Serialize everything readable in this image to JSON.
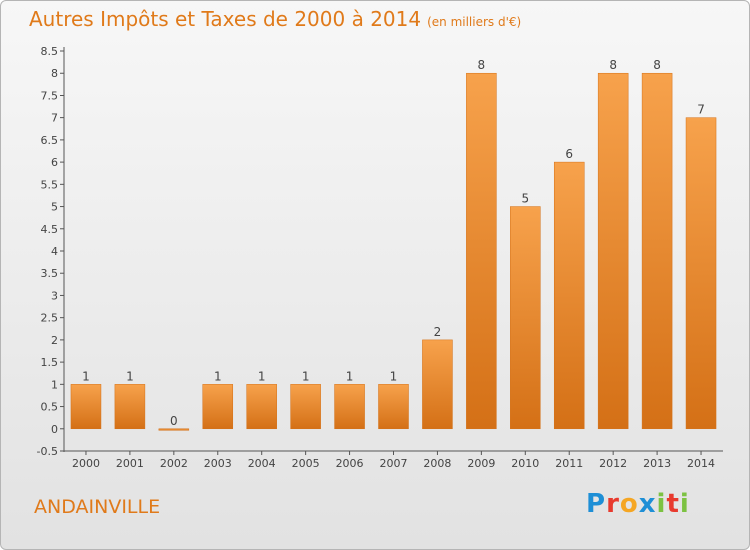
{
  "title": "Autres Impôts et Taxes de 2000 à 2014",
  "unit": "(en milliers d'€)",
  "commune": "ANDAINVILLE",
  "brand": {
    "letters": [
      "P",
      "r",
      "o",
      "x",
      "i",
      "t",
      "i"
    ],
    "colors": [
      "#1e8fd6",
      "#e83a2e",
      "#f5a623",
      "#1e8fd6",
      "#7cc242",
      "#e83a2e",
      "#7cc242"
    ]
  },
  "colors": {
    "accent": "#e07a1a",
    "bar": "#f0973d"
  },
  "chart_data": {
    "type": "bar",
    "title": "Autres Impôts et Taxes de 2000 à 2014",
    "categories": [
      "2000",
      "2001",
      "2002",
      "2003",
      "2004",
      "2005",
      "2006",
      "2007",
      "2008",
      "2009",
      "2010",
      "2011",
      "2012",
      "2013",
      "2014"
    ],
    "values": [
      1,
      1,
      0,
      1,
      1,
      1,
      1,
      1,
      2,
      8,
      5,
      6,
      8,
      8,
      7
    ],
    "ylim": [
      -0.5,
      8.5
    ],
    "yticks": [
      -0.5,
      0,
      0.5,
      1,
      1.5,
      2,
      2.5,
      3,
      3.5,
      4,
      4.5,
      5,
      5.5,
      6,
      6.5,
      7,
      7.5,
      8,
      8.5
    ],
    "ytick_labels": [
      "-0.5",
      "0",
      "0.5",
      "1",
      "1.5",
      "2",
      "2.5",
      "3",
      "3.5",
      "4",
      "4.5",
      "5",
      "5.5",
      "6",
      "6.5",
      "7",
      "7.5",
      "8",
      "8.5"
    ],
    "grid": false
  }
}
